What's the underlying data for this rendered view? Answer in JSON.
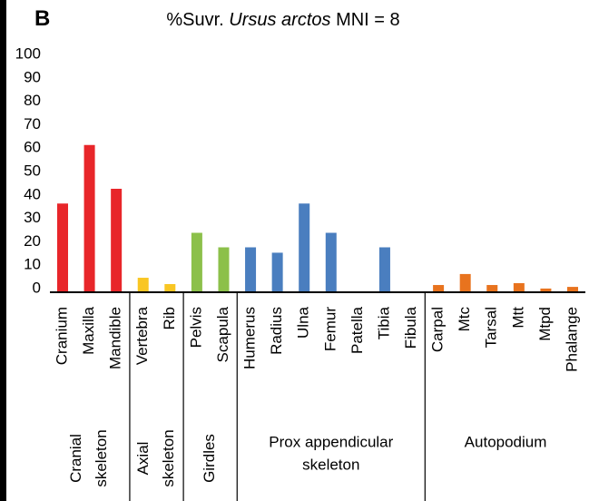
{
  "chart_data": {
    "type": "bar",
    "panel_label": "B",
    "title_prefix": "%Suvr.",
    "title_italic": "Ursus arctos",
    "title_suffix": "MNI = 8",
    "categories": [
      "Cranium",
      "Maxilla",
      "Mandible",
      "Vertebra",
      "Rib",
      "Pelvis",
      "Scapula",
      "Humerus",
      "Radius",
      "Ulna",
      "Femur",
      "Patella",
      "Tibia",
      "Fibula",
      "Carpal",
      "Mtc",
      "Tarsal",
      "Mtt",
      "Mtpd",
      "Phalange"
    ],
    "values": [
      37.5,
      62.5,
      43.8,
      5.8,
      3.1,
      25,
      18.8,
      18.8,
      16.5,
      37.5,
      25,
      0,
      18.8,
      0,
      2.7,
      7.4,
      2.7,
      3.5,
      1.2,
      1.9
    ],
    "colors": [
      "#e8262a",
      "#e8262a",
      "#e8262a",
      "#f9c623",
      "#f9c623",
      "#8cc04a",
      "#8cc04a",
      "#4a7ebf",
      "#4a7ebf",
      "#4a7ebf",
      "#4a7ebf",
      "#4a7ebf",
      "#4a7ebf",
      "#4a7ebf",
      "#e8731e",
      "#e8731e",
      "#e8731e",
      "#e8731e",
      "#e8731e",
      "#e8731e"
    ],
    "groups": [
      {
        "label": [
          "Cranial",
          "skeleton"
        ],
        "span": 3,
        "rotated": true
      },
      {
        "label": [
          "Axial",
          "skeleton"
        ],
        "span": 2,
        "rotated": true
      },
      {
        "label": [
          "Girdles"
        ],
        "span": 2,
        "rotated": true
      },
      {
        "label": [
          "Prox appendicular",
          "skeleton"
        ],
        "span": 7,
        "rotated": false
      },
      {
        "label": [
          "Autopodium"
        ],
        "span": 6,
        "rotated": false
      }
    ],
    "ylim": [
      0,
      100
    ],
    "yticks": [
      0,
      10,
      20,
      30,
      40,
      50,
      60,
      70,
      80,
      90,
      100
    ]
  }
}
